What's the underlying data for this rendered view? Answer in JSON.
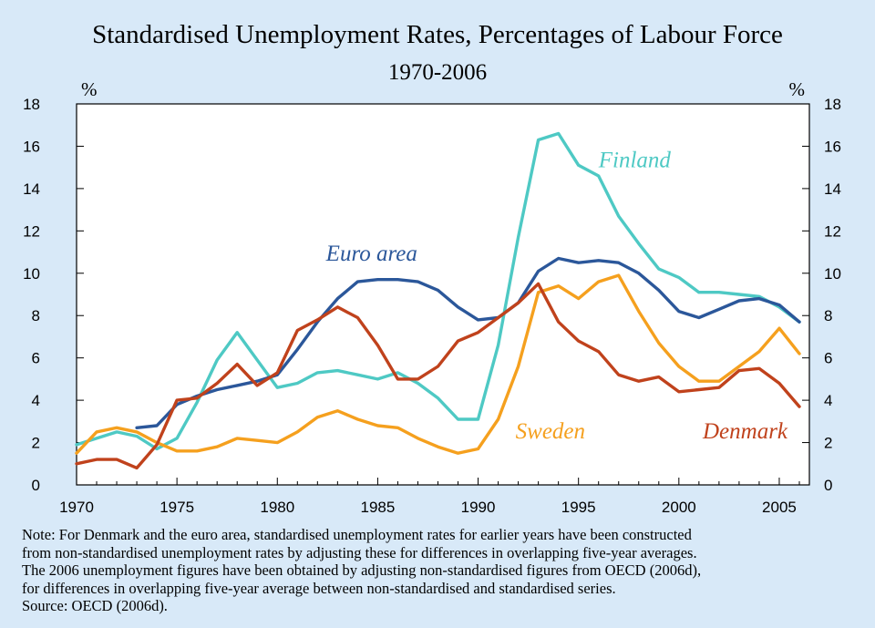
{
  "chart_data": {
    "type": "line",
    "title": "Standardised Unemployment Rates, Percentages of Labour Force",
    "subtitle": "1970-2006",
    "ylabel_left": "%",
    "ylabel_right": "%",
    "xlim": [
      1970,
      2006.5
    ],
    "ylim": [
      0,
      18
    ],
    "xticks": [
      1970,
      1975,
      1980,
      1985,
      1990,
      1995,
      2000,
      2005
    ],
    "yticks": [
      0,
      2,
      4,
      6,
      8,
      10,
      12,
      14,
      16,
      18
    ],
    "grid": false,
    "series": [
      {
        "name": "Finland",
        "color": "#4ec9c4",
        "label_pos": [
          1997.8,
          15.0
        ],
        "x": [
          1970,
          1971,
          1972,
          1973,
          1974,
          1975,
          1976,
          1977,
          1978,
          1979,
          1980,
          1981,
          1982,
          1983,
          1984,
          1985,
          1986,
          1987,
          1988,
          1989,
          1990,
          1991,
          1992,
          1993,
          1994,
          1995,
          1996,
          1997,
          1998,
          1999,
          2000,
          2001,
          2002,
          2003,
          2004,
          2005,
          2006
        ],
        "y": [
          1.9,
          2.2,
          2.5,
          2.3,
          1.7,
          2.2,
          3.9,
          5.9,
          7.2,
          5.9,
          4.6,
          4.8,
          5.3,
          5.4,
          5.2,
          5.0,
          5.3,
          4.8,
          4.1,
          3.1,
          3.1,
          6.6,
          11.7,
          16.3,
          16.6,
          15.1,
          14.6,
          12.7,
          11.4,
          10.2,
          9.8,
          9.1,
          9.1,
          9.0,
          8.9,
          8.4,
          7.7
        ]
      },
      {
        "name": "Euro area",
        "color": "#2b579a",
        "label_pos": [
          1984.7,
          10.6
        ],
        "x": [
          1973,
          1974,
          1975,
          1976,
          1977,
          1978,
          1979,
          1980,
          1981,
          1982,
          1983,
          1984,
          1985,
          1986,
          1987,
          1988,
          1989,
          1990,
          1991,
          1992,
          1993,
          1994,
          1995,
          1996,
          1997,
          1998,
          1999,
          2000,
          2001,
          2002,
          2003,
          2004,
          2005,
          2006
        ],
        "y": [
          2.7,
          2.8,
          3.8,
          4.2,
          4.5,
          4.7,
          4.9,
          5.2,
          6.4,
          7.7,
          8.8,
          9.6,
          9.7,
          9.7,
          9.6,
          9.2,
          8.4,
          7.8,
          7.9,
          8.6,
          10.1,
          10.7,
          10.5,
          10.6,
          10.5,
          10.0,
          9.2,
          8.2,
          7.9,
          8.3,
          8.7,
          8.8,
          8.5,
          7.7
        ]
      },
      {
        "name": "Sweden",
        "color": "#f5a01e",
        "label_pos": [
          1993.6,
          2.2
        ],
        "x": [
          1970,
          1971,
          1972,
          1973,
          1974,
          1975,
          1976,
          1977,
          1978,
          1979,
          1980,
          1981,
          1982,
          1983,
          1984,
          1985,
          1986,
          1987,
          1988,
          1989,
          1990,
          1991,
          1992,
          1993,
          1994,
          1995,
          1996,
          1997,
          1998,
          1999,
          2000,
          2001,
          2002,
          2003,
          2004,
          2005,
          2006
        ],
        "y": [
          1.5,
          2.5,
          2.7,
          2.5,
          2.0,
          1.6,
          1.6,
          1.8,
          2.2,
          2.1,
          2.0,
          2.5,
          3.2,
          3.5,
          3.1,
          2.8,
          2.7,
          2.2,
          1.8,
          1.5,
          1.7,
          3.1,
          5.6,
          9.1,
          9.4,
          8.8,
          9.6,
          9.9,
          8.2,
          6.7,
          5.6,
          4.9,
          4.9,
          5.6,
          6.3,
          7.4,
          6.2
        ]
      },
      {
        "name": "Denmark",
        "color": "#c0421c",
        "label_pos": [
          2003.3,
          2.2
        ],
        "x": [
          1970,
          1971,
          1972,
          1973,
          1974,
          1975,
          1976,
          1977,
          1978,
          1979,
          1980,
          1981,
          1982,
          1983,
          1984,
          1985,
          1986,
          1987,
          1988,
          1989,
          1990,
          1991,
          1992,
          1993,
          1994,
          1995,
          1996,
          1997,
          1998,
          1999,
          2000,
          2001,
          2002,
          2003,
          2004,
          2005,
          2006
        ],
        "y": [
          1.0,
          1.2,
          1.2,
          0.8,
          1.9,
          4.0,
          4.1,
          4.8,
          5.7,
          4.7,
          5.3,
          7.3,
          7.8,
          8.4,
          7.9,
          6.6,
          5.0,
          5.0,
          5.6,
          6.8,
          7.2,
          7.9,
          8.6,
          9.5,
          7.7,
          6.8,
          6.3,
          5.2,
          4.9,
          5.1,
          4.4,
          4.5,
          4.6,
          5.4,
          5.5,
          4.8,
          3.7
        ]
      }
    ]
  },
  "notes": [
    "Note: For Denmark and the euro area, standardised unemployment rates for earlier years have been constructed",
    "from non-standardised unemployment rates by adjusting these for differences in overlapping five-year averages.",
    "The 2006 unemployment figures have been obtained by adjusting non-standardised figures from OECD (2006d),",
    "for differences in overlapping five-year average between non-standardised and standardised series."
  ],
  "source": "Source: OECD (2006d)."
}
